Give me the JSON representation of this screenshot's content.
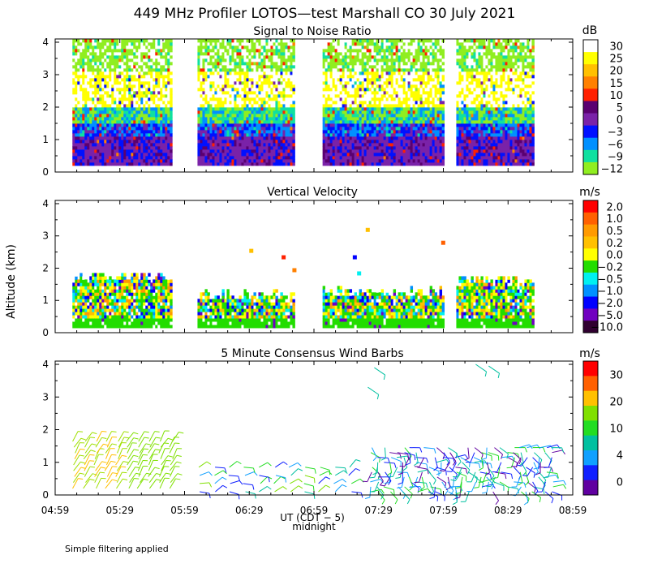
{
  "figure": {
    "title": "449 MHz Profiler LOTOS—test Marshall CO 30 July 2021",
    "ylabel": "Altitude (km)",
    "xlabel": "UT (CDT − 5)",
    "midnight_label": "midnight",
    "footnote": "Simple filtering applied",
    "x_ticks": [
      "04:59",
      "05:29",
      "05:59",
      "06:29",
      "06:59",
      "07:29",
      "07:59",
      "08:29",
      "08:59"
    ]
  },
  "chart_data": [
    {
      "type": "heatmap",
      "title": "Signal to Noise Ratio",
      "units": "dB",
      "ylim": [
        0,
        4.1
      ],
      "y_ticks": [
        "0",
        "1",
        "2",
        "3",
        "4"
      ],
      "colorbar": {
        "labels": [
          "30",
          "25",
          "20",
          "15",
          "10",
          "5",
          "0",
          "−3",
          "−6",
          "−9",
          "−12"
        ],
        "colors": [
          "#ffffff",
          "#ffff00",
          "#ffc000",
          "#ff8000",
          "#ff2000",
          "#5a0070",
          "#7a22a8",
          "#0010ff",
          "#0090ff",
          "#10e0a0",
          "#90ee20"
        ]
      },
      "segments": [
        {
          "start": "05:07",
          "end": "05:53"
        },
        {
          "start": "06:05",
          "end": "06:50"
        },
        {
          "start": "07:03",
          "end": "07:59"
        },
        {
          "start": "08:05",
          "end": "08:41"
        }
      ],
      "bands": [
        {
          "from": 0.2,
          "to": 1.0,
          "value": 2
        },
        {
          "from": 1.0,
          "to": 1.5,
          "value": -2
        },
        {
          "from": 1.5,
          "to": 2.0,
          "value": -8
        },
        {
          "from": 2.0,
          "to": 3.1,
          "value": 30
        },
        {
          "from": 3.1,
          "to": 4.1,
          "value": -12
        }
      ]
    },
    {
      "type": "heatmap",
      "title": "Vertical Velocity",
      "units": "m/s",
      "ylim": [
        0,
        4.1
      ],
      "y_ticks": [
        "0",
        "1",
        "2",
        "3",
        "4"
      ],
      "colorbar": {
        "labels": [
          "2.0",
          "1.0",
          "0.5",
          "0.2",
          "0.0",
          "−0.2",
          "−0.5",
          "−1.0",
          "−2.0",
          "−5.0",
          "−10.0"
        ],
        "colors": [
          "#ff0000",
          "#ff6000",
          "#ff9a00",
          "#ffc000",
          "#ffff00",
          "#22dd00",
          "#00f0f0",
          "#0090ff",
          "#0000ff",
          "#7000c0",
          "#300030"
        ]
      },
      "segments": [
        {
          "start": "05:07",
          "end": "05:53"
        },
        {
          "start": "06:05",
          "end": "06:50"
        },
        {
          "start": "07:03",
          "end": "07:59"
        },
        {
          "start": "08:05",
          "end": "08:41"
        }
      ],
      "tops_km": [
        1.85,
        1.3,
        1.4,
        1.75
      ]
    },
    {
      "type": "scatter",
      "title": "5 Minute Consensus Wind Barbs",
      "units": "m/s",
      "ylim": [
        0,
        4.1
      ],
      "y_ticks": [
        "0",
        "1",
        "2",
        "3",
        "4"
      ],
      "colorbar": {
        "labels": [
          "30",
          "20",
          "10",
          "4",
          "0"
        ],
        "colors": [
          "#ff0000",
          "#ff6000",
          "#ffc000",
          "#80e000",
          "#22dd22",
          "#00c0a0",
          "#10a0ff",
          "#1020ff",
          "#6000a0"
        ]
      }
    }
  ]
}
